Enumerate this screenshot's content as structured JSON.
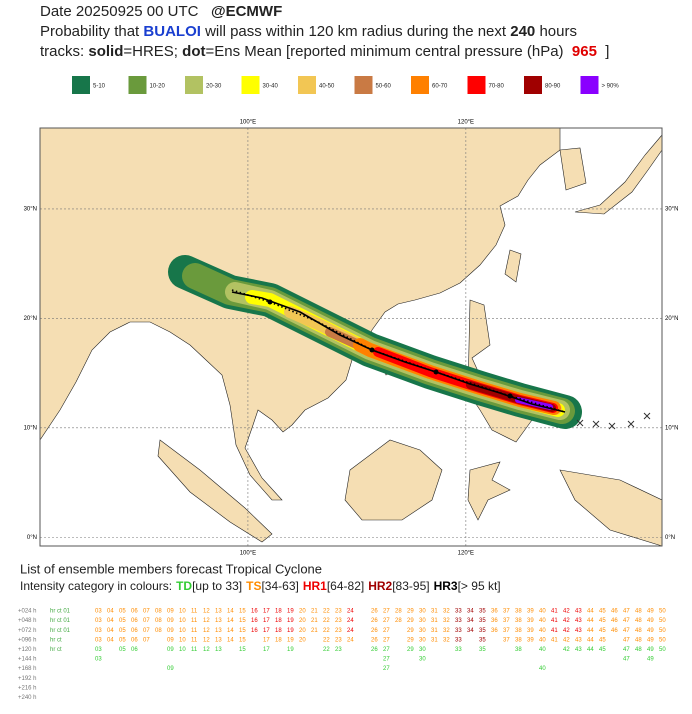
{
  "header": {
    "date": "Date 20250925 00 UTC",
    "source": "@ECMWF",
    "line2": [
      "Probability that",
      "BUALOI",
      "will pass within 120 km radius during the next",
      "240",
      "hours"
    ],
    "line3": [
      "tracks:",
      "solid",
      "=HRES;",
      "dot",
      "=Ens Mean [reported minimum central pressure (hPa)",
      "965",
      "]"
    ]
  },
  "legend": {
    "items": [
      {
        "label": "5-10",
        "color": "#17764a"
      },
      {
        "label": "10-20",
        "color": "#6a9a3c"
      },
      {
        "label": "20-30",
        "color": "#b2c262"
      },
      {
        "label": "30-40",
        "color": "#ffff00"
      },
      {
        "label": "40-50",
        "color": "#f2c654"
      },
      {
        "label": "50-60",
        "color": "#c97a44"
      },
      {
        "label": "60-70",
        "color": "#ff8000"
      },
      {
        "label": "70-80",
        "color": "#ff0000"
      },
      {
        "label": "80-90",
        "color": "#a00000"
      },
      {
        "label": "> 90%",
        "color": "#8a00ff"
      }
    ]
  },
  "map": {
    "lon_range": [
      80.92,
      138
    ],
    "lat_range": [
      -0.8,
      37.4
    ],
    "lon_ticks": [
      {
        "value": 100,
        "label": "100°E"
      },
      {
        "value": 120,
        "label": "120°E"
      }
    ],
    "lat_ticks": [
      {
        "value": 30,
        "label": "30°N"
      },
      {
        "value": 20,
        "label": "20°N"
      },
      {
        "value": 10,
        "label": "10°N"
      },
      {
        "value": 0,
        "label": "0°N"
      }
    ],
    "grid": true
  },
  "ensemble": {
    "title": "List of ensemble members forecast Tropical Cyclone",
    "intensity_intro": "Intensity category in colours:",
    "intensity": [
      {
        "label": "TD",
        "range": "[up to 33]",
        "color": "#33cc33"
      },
      {
        "label": "TS",
        "range": "[34-63]",
        "color": "#ff8c00"
      },
      {
        "label": "HR1",
        "range": "[64-82]",
        "color": "#ee0000"
      },
      {
        "label": "HR2",
        "range": "[83-95]",
        "color": "#a00000"
      },
      {
        "label": "HR3",
        "range": "[> 95 kt]",
        "color": "#000000"
      }
    ],
    "rows": [
      {
        "step": "+024 h",
        "lead": "hr ct 01",
        "members": [
          "03",
          "04",
          "05",
          "06",
          "07",
          "08",
          "09",
          "10",
          "11",
          "12",
          "13",
          "14",
          "15",
          "16",
          "17",
          "18",
          "19",
          "20",
          "21",
          "22",
          "23",
          "24",
          "26",
          "27",
          "28",
          "29",
          "30",
          "31",
          "32",
          "33",
          "34",
          "35",
          "36",
          "37",
          "38",
          "39",
          "40",
          "41",
          "42",
          "43",
          "44",
          "45",
          "46",
          "47",
          "48",
          "49",
          "50"
        ],
        "cats": [
          "TS",
          "TS",
          "TS",
          "TS",
          "TS",
          "TS",
          "TS",
          "TS",
          "TS",
          "TS",
          "TS",
          "TS",
          "TS",
          "HR1",
          "HR1",
          "HR1",
          "HR1",
          "TS",
          "TS",
          "TS",
          "TS",
          "HR1",
          "TS",
          "TS",
          "TS",
          "TS",
          "TS",
          "TS",
          "TS",
          "HR2",
          "HR2",
          "HR2",
          "TS",
          "TS",
          "TS",
          "TS",
          "TS",
          "HR1",
          "HR1",
          "HR1",
          "TS",
          "TS",
          "TS",
          "TS",
          "TS",
          "TS",
          "TS"
        ]
      },
      {
        "step": "+048 h",
        "lead": "hr ct 01",
        "members": [
          "03",
          "04",
          "05",
          "06",
          "07",
          "08",
          "09",
          "10",
          "11",
          "12",
          "13",
          "14",
          "15",
          "16",
          "17",
          "18",
          "19",
          "20",
          "21",
          "22",
          "23",
          "24",
          "26",
          "27",
          "28",
          "29",
          "30",
          "31",
          "32",
          "33",
          "34",
          "35",
          "36",
          "37",
          "38",
          "39",
          "40",
          "41",
          "42",
          "43",
          "44",
          "45",
          "46",
          "47",
          "48",
          "49",
          "50"
        ],
        "cats": [
          "TS",
          "TS",
          "TS",
          "TS",
          "TS",
          "TS",
          "TS",
          "TS",
          "TS",
          "TS",
          "TS",
          "TS",
          "TS",
          "HR1",
          "HR1",
          "HR1",
          "HR1",
          "TS",
          "TS",
          "TS",
          "TS",
          "HR1",
          "TS",
          "TS",
          "TS",
          "TS",
          "TS",
          "TS",
          "TS",
          "HR2",
          "HR2",
          "HR2",
          "TS",
          "TS",
          "TS",
          "TS",
          "TS",
          "HR1",
          "HR1",
          "HR1",
          "TS",
          "TS",
          "TS",
          "TS",
          "TS",
          "TS",
          "TS"
        ]
      },
      {
        "step": "+072 h",
        "lead": "hr ct 01",
        "members": [
          "03",
          "04",
          "05",
          "06",
          "07",
          "08",
          "09",
          "10",
          "11",
          "12",
          "13",
          "14",
          "15",
          "16",
          "17",
          "18",
          "19",
          "20",
          "21",
          "22",
          "23",
          "24",
          "26",
          "27",
          "29",
          "30",
          "31",
          "32",
          "33",
          "34",
          "35",
          "36",
          "37",
          "38",
          "39",
          "40",
          "41",
          "42",
          "43",
          "44",
          "45",
          "46",
          "47",
          "48",
          "49",
          "50"
        ],
        "cats": [
          "TS",
          "TS",
          "TS",
          "TS",
          "TS",
          "TS",
          "TS",
          "TS",
          "TS",
          "TS",
          "TS",
          "TS",
          "TS",
          "HR1",
          "HR1",
          "HR1",
          "HR1",
          "TS",
          "TS",
          "TS",
          "TS",
          "HR1",
          "TS",
          "TS",
          "TS",
          "TS",
          "TS",
          "TS",
          "HR2",
          "HR2",
          "HR2",
          "TS",
          "TS",
          "TS",
          "TS",
          "TS",
          "HR1",
          "HR1",
          "HR1",
          "TS",
          "TS",
          "TS",
          "TS",
          "TS",
          "TS",
          "TS"
        ]
      },
      {
        "step": "+096 h",
        "lead": "hr ct",
        "members": [
          "03",
          "04",
          "05",
          "06",
          "07",
          "09",
          "10",
          "11",
          "12",
          "13",
          "14",
          "15",
          "17",
          "18",
          "19",
          "20",
          "22",
          "23",
          "24",
          "26",
          "27",
          "29",
          "30",
          "31",
          "32",
          "33",
          "35",
          "37",
          "38",
          "39",
          "40",
          "41",
          "42",
          "43",
          "44",
          "45",
          "47",
          "48",
          "49",
          "50"
        ],
        "cats": [
          "TS",
          "TS",
          "TS",
          "TS",
          "TS",
          "TS",
          "TS",
          "TS",
          "TS",
          "TS",
          "TS",
          "TS",
          "TS",
          "TS",
          "TS",
          "TS",
          "TS",
          "TS",
          "TS",
          "TS",
          "TS",
          "TS",
          "TS",
          "TS",
          "TS",
          "HR2",
          "HR2",
          "TS",
          "TS",
          "TS",
          "TS",
          "TS",
          "TS",
          "TS",
          "TS",
          "TS",
          "TS",
          "TS",
          "TS",
          "TS"
        ]
      },
      {
        "step": "+120 h",
        "lead": "hr ct",
        "members": [
          "03",
          "05",
          "06",
          "09",
          "10",
          "11",
          "12",
          "13",
          "15",
          "17",
          "19",
          "22",
          "23",
          "26",
          "27",
          "29",
          "30",
          "33",
          "35",
          "38",
          "40",
          "42",
          "43",
          "44",
          "45",
          "47",
          "48",
          "49",
          "50"
        ],
        "cats": [
          "TD",
          "TD",
          "TD",
          "TD",
          "TD",
          "TD",
          "TD",
          "TD",
          "TD",
          "TD",
          "TD",
          "TD",
          "TD",
          "TD",
          "TD",
          "TD",
          "TD",
          "TD",
          "TD",
          "TD",
          "TD",
          "TD",
          "TD",
          "TD",
          "TD",
          "TD",
          "TD",
          "TD",
          "TD"
        ]
      },
      {
        "step": "+144 h",
        "members": [
          "03",
          "27",
          "30",
          "47",
          "49"
        ],
        "cats": [
          "TD",
          "TD",
          "TD",
          "TD",
          "TD"
        ]
      },
      {
        "step": "+168 h",
        "members": [
          "09",
          "27",
          "40"
        ],
        "cats": [
          "TD",
          "TD",
          "TD"
        ]
      },
      {
        "step": "+192 h",
        "members": [],
        "cats": []
      },
      {
        "step": "+216 h",
        "members": [],
        "cats": []
      },
      {
        "step": "+240 h",
        "members": [],
        "cats": []
      }
    ]
  }
}
